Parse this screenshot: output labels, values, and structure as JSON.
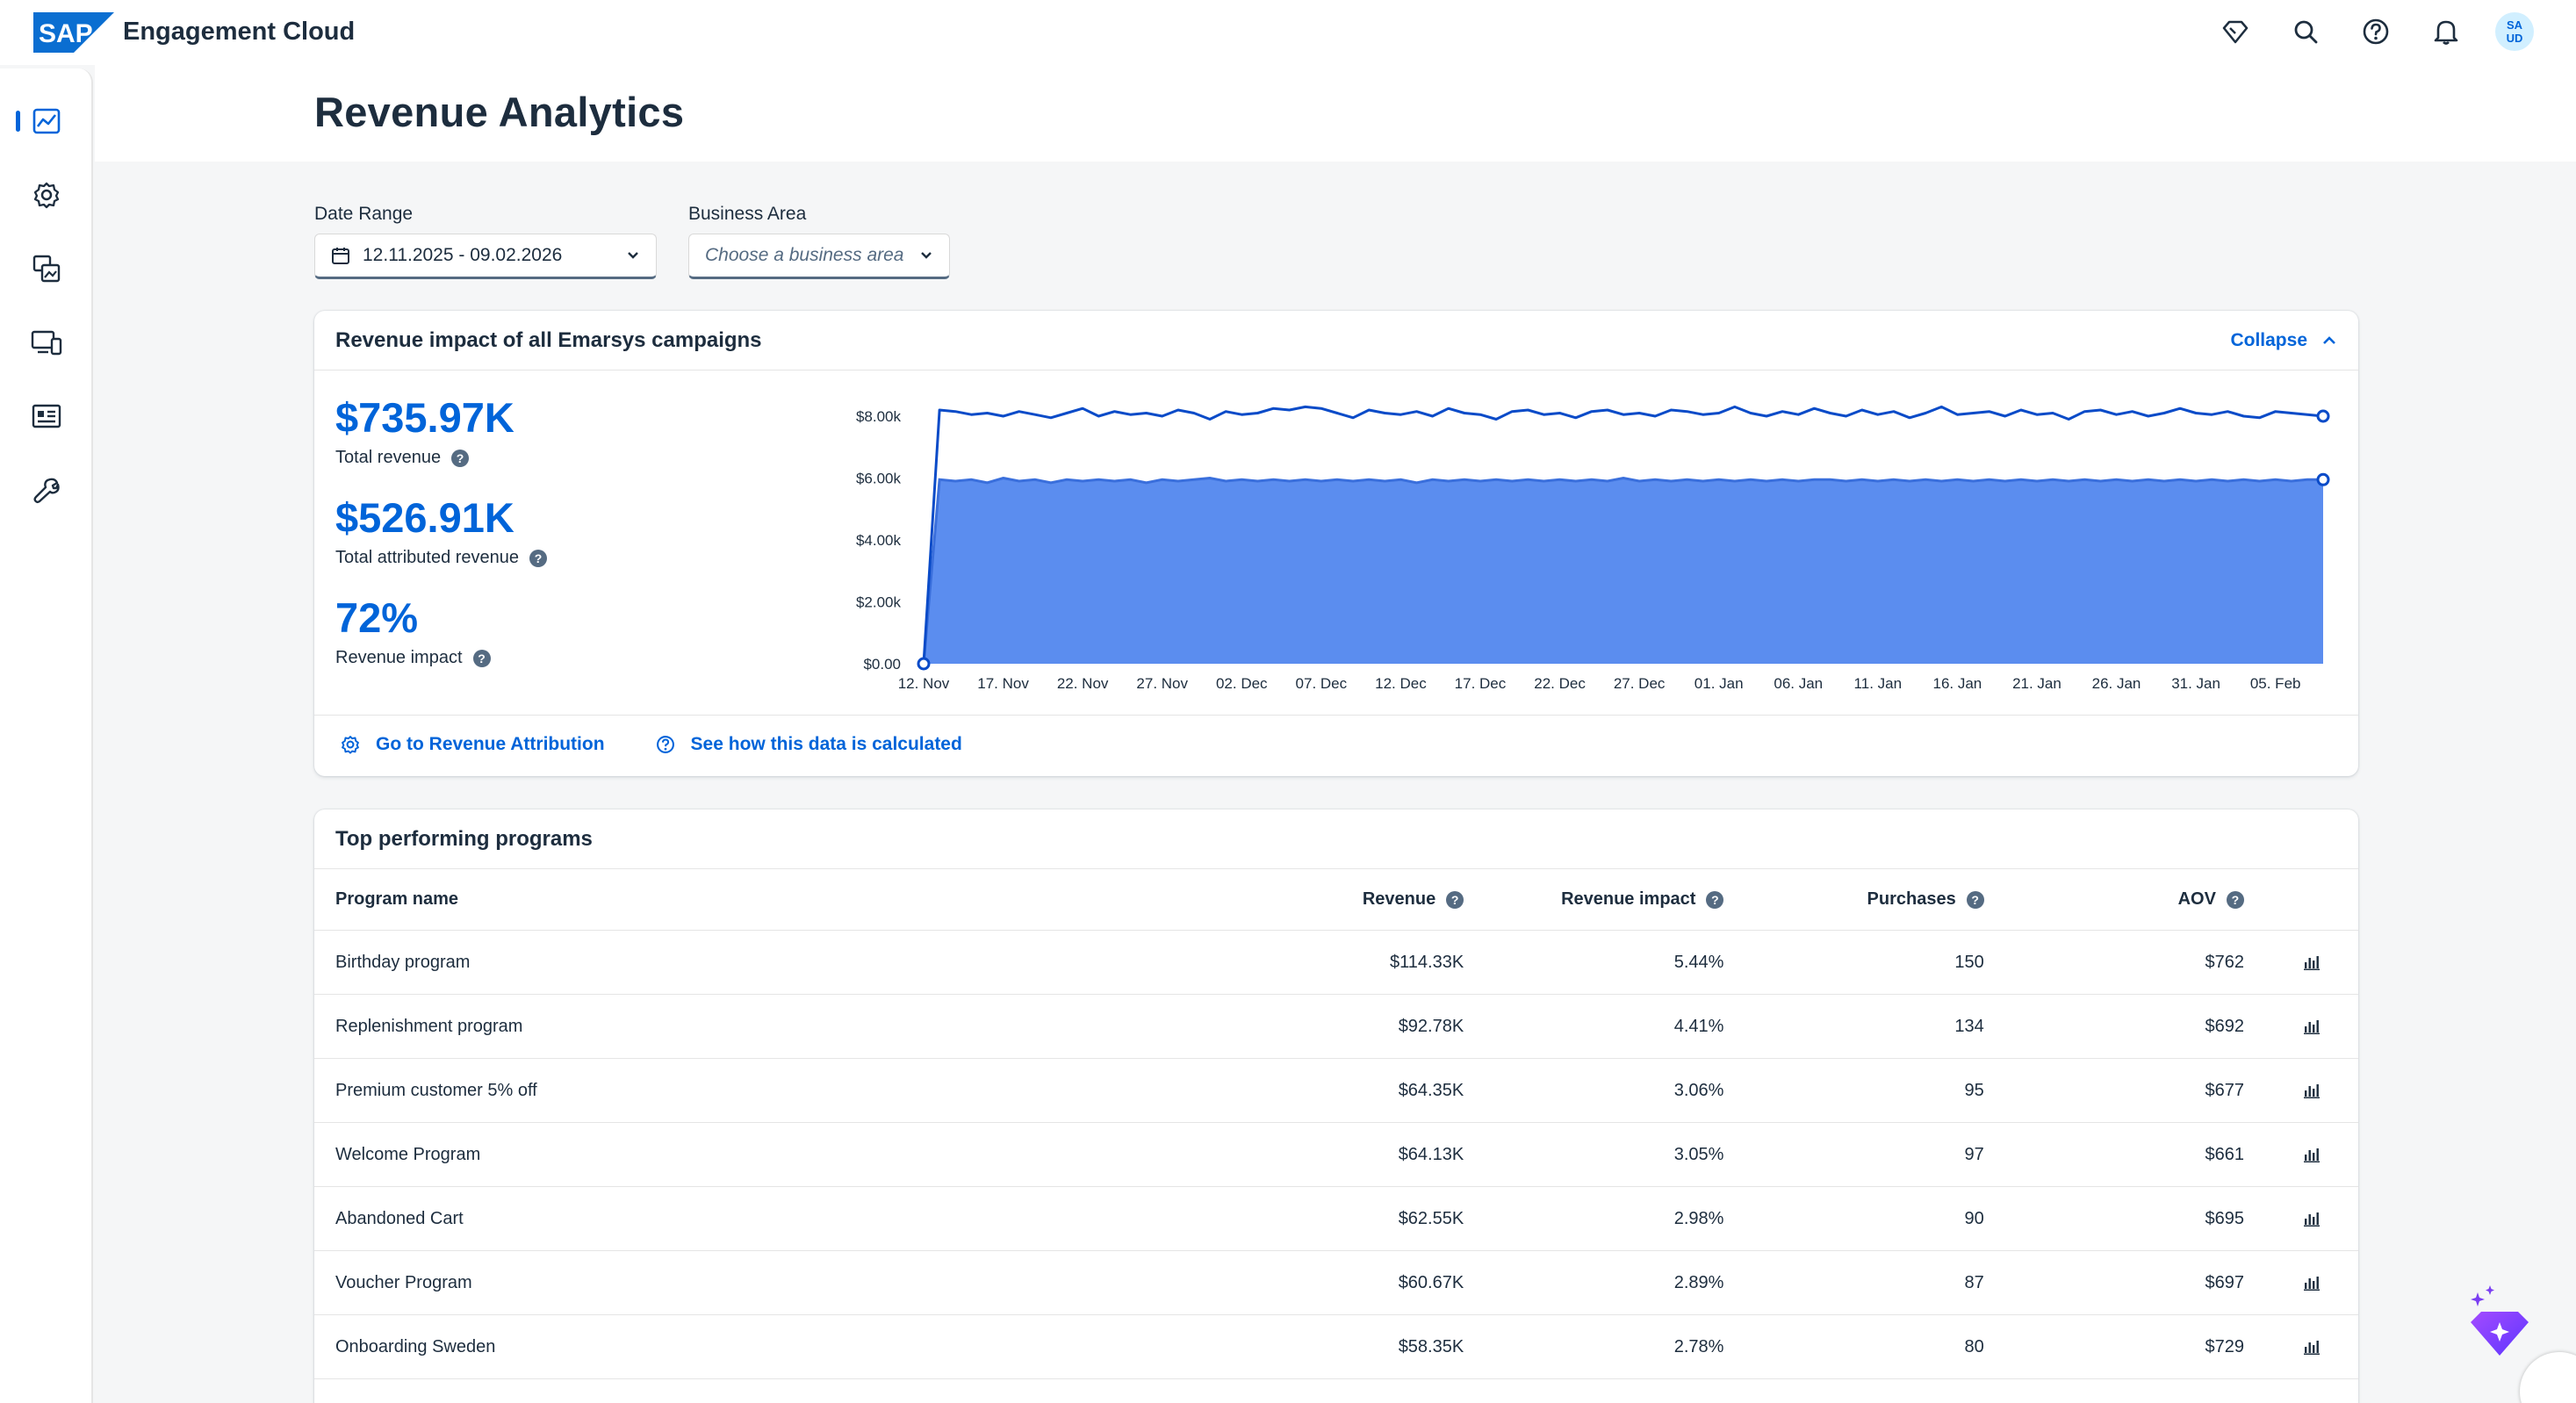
{
  "app": {
    "brand": "SAP",
    "product": "Engagement Cloud",
    "avatar_initials_1": "SA",
    "avatar_initials_2": "UD"
  },
  "icons": {
    "shell": [
      "diamond-icon",
      "search-icon",
      "help-icon",
      "bell-icon"
    ],
    "nav": [
      "analytics-icon",
      "settings-gear-icon",
      "content-icon",
      "devices-icon",
      "contacts-card-icon",
      "tools-wrench-icon"
    ]
  },
  "page": {
    "title": "Revenue Analytics"
  },
  "filters": {
    "date_range_label": "Date Range",
    "date_range_value": "12.11.2025 - 09.02.2026",
    "business_area_label": "Business Area",
    "business_area_placeholder": "Choose a business area"
  },
  "revenue_card": {
    "title": "Revenue impact of all Emarsys campaigns",
    "collapse_label": "Collapse",
    "kpis": [
      {
        "value": "$735.97K",
        "label": "Total revenue"
      },
      {
        "value": "$526.91K",
        "label": "Total attributed revenue"
      },
      {
        "value": "72%",
        "label": "Revenue impact"
      }
    ],
    "links": {
      "attribution": "Go to Revenue Attribution",
      "calculation": "See how this data is calculated"
    }
  },
  "chart_data": {
    "type": "area",
    "y_ticks": [
      "$0.00",
      "$2.00k",
      "$4.00k",
      "$6.00k",
      "$8.00k"
    ],
    "ylim": [
      0,
      8000
    ],
    "x_ticks": [
      "12. Nov",
      "17. Nov",
      "22. Nov",
      "27. Nov",
      "02. Dec",
      "07. Dec",
      "12. Dec",
      "17. Dec",
      "22. Dec",
      "27. Dec",
      "01. Jan",
      "06. Jan",
      "11. Jan",
      "16. Jan",
      "21. Jan",
      "26. Jan",
      "31. Jan",
      "05. Feb"
    ],
    "grid": false,
    "series": [
      {
        "values": [
          0,
          8200,
          8150,
          8050,
          8100,
          8000,
          8150,
          8050,
          7950,
          8100,
          8250,
          8000,
          8150,
          8050,
          8100,
          8000,
          8200,
          8100,
          7900,
          8150,
          8050,
          8100,
          8250,
          8200,
          8300,
          8250,
          8100,
          7950,
          8200,
          8100,
          8050,
          8150,
          8000,
          8250,
          8100,
          8050,
          7900,
          8150,
          8200,
          8050,
          8100,
          7950,
          8150,
          8200,
          8050,
          8100,
          8000,
          8200,
          8150,
          8050,
          8100,
          8300,
          8100,
          8000,
          8150,
          8050,
          8250,
          8100,
          8000,
          8200,
          8050,
          8150,
          7950,
          8100,
          8300,
          8050,
          8100,
          8150,
          8000,
          8200,
          8050,
          8100,
          7900,
          8150,
          8200,
          8050,
          8150,
          8000,
          8100,
          8250,
          8100,
          8050,
          8150,
          8000,
          7950,
          8150,
          8100,
          8050,
          8000
        ],
        "color": "#0a4bc8"
      },
      {
        "values": [
          0,
          5950,
          5900,
          5950,
          5850,
          6000,
          5900,
          5950,
          5850,
          5950,
          5900,
          5950,
          5900,
          5950,
          5850,
          5950,
          5900,
          5950,
          6000,
          5900,
          5950,
          5900,
          5950,
          5900,
          5950,
          5900,
          5950,
          5900,
          5950,
          5900,
          5950,
          5850,
          5950,
          5900,
          5950,
          5900,
          5950,
          5900,
          5950,
          5900,
          5950,
          5900,
          5950,
          5900,
          6000,
          5900,
          5950,
          5900,
          5950,
          5900,
          5950,
          5900,
          5950,
          5900,
          5950,
          5900,
          5950,
          5950,
          5900,
          5950,
          5900,
          5950,
          5900,
          5950,
          5900,
          5950,
          5900,
          5950,
          5900,
          5950,
          5900,
          5950,
          5900,
          5950,
          5900,
          5950,
          5900,
          5950,
          5900,
          5950,
          5900,
          5950,
          5900,
          5950,
          5900,
          5950,
          5900,
          5950,
          5950
        ],
        "color": "#5b8def"
      }
    ]
  },
  "programs_card": {
    "title": "Top performing programs",
    "columns": [
      "Program name",
      "Revenue",
      "Revenue impact",
      "Purchases",
      "AOV"
    ],
    "rows": [
      [
        "Birthday program",
        "$114.33K",
        "5.44%",
        "150",
        "$762"
      ],
      [
        "Replenishment program",
        "$92.78K",
        "4.41%",
        "134",
        "$692"
      ],
      [
        "Premium customer 5% off",
        "$64.35K",
        "3.06%",
        "95",
        "$677"
      ],
      [
        "Welcome Program",
        "$64.13K",
        "3.05%",
        "97",
        "$661"
      ],
      [
        "Abandoned Cart",
        "$62.55K",
        "2.98%",
        "90",
        "$695"
      ],
      [
        "Voucher Program",
        "$60.67K",
        "2.89%",
        "87",
        "$697"
      ],
      [
        "Onboarding Sweden",
        "$58.35K",
        "2.78%",
        "80",
        "$729"
      ]
    ]
  }
}
